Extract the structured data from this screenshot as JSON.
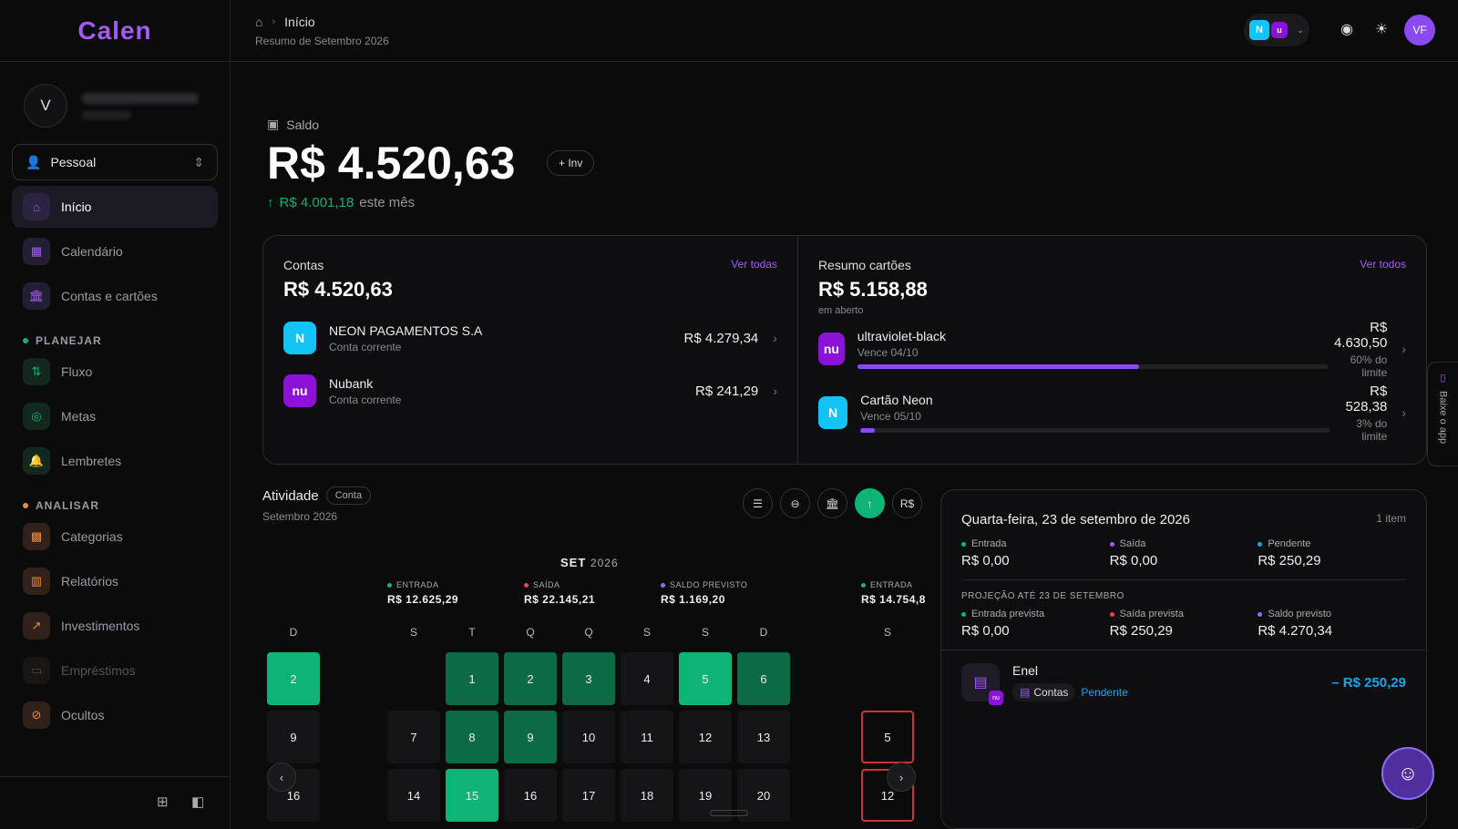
{
  "app": {
    "logo": "Calen"
  },
  "user": {
    "initial": "V"
  },
  "profile": {
    "label": "Pessoal"
  },
  "nav": {
    "main": [
      {
        "label": "Início",
        "icon": "home-icon",
        "active": true
      },
      {
        "label": "Calendário",
        "icon": "calendar-icon"
      },
      {
        "label": "Contas e cartões",
        "icon": "bank-icon"
      }
    ],
    "plan_title": "PLANEJAR",
    "plan": [
      {
        "label": "Fluxo",
        "icon": "arrows-icon"
      },
      {
        "label": "Metas",
        "icon": "target-icon"
      },
      {
        "label": "Lembretes",
        "icon": "bell-icon"
      }
    ],
    "analyze_title": "ANALISAR",
    "analyze": [
      {
        "label": "Categorias",
        "icon": "grid-icon"
      },
      {
        "label": "Relatórios",
        "icon": "chart-icon"
      },
      {
        "label": "Investimentos",
        "icon": "trend-icon"
      },
      {
        "label": "Empréstimos",
        "icon": "money-icon"
      },
      {
        "label": "Ocultos",
        "icon": "eye-off-icon"
      }
    ]
  },
  "topbar": {
    "crumb": "Início",
    "subtitle": "Resumo de Setembro 2026",
    "avatar": "VF"
  },
  "balance": {
    "label": "Saldo",
    "value": "R$ 4.520,63",
    "inv": "+ Inv",
    "growth": "R$ 4.001,18",
    "growth_suffix": "este mês"
  },
  "accounts": {
    "title": "Contas",
    "total": "R$ 4.520,63",
    "more": "Ver todas",
    "items": [
      {
        "name": "NEON PAGAMENTOS S.A",
        "type": "Conta corrente",
        "amount": "R$ 4.279,34",
        "logo": "N"
      },
      {
        "name": "Nubank",
        "type": "Conta corrente",
        "amount": "R$ 241,29",
        "logo": "nu"
      }
    ]
  },
  "cards": {
    "title": "Resumo cartões",
    "total": "R$ 5.158,88",
    "sub": "em aberto",
    "more": "Ver todos",
    "items": [
      {
        "name": "ultraviolet-black",
        "due": "Vence 04/10",
        "amount": "R$ 4.630,50",
        "limit": "60% do limite",
        "progress": 0.6,
        "logo": "nu"
      },
      {
        "name": "Cartão Neon",
        "due": "Vence 05/10",
        "amount": "R$ 528,38",
        "limit": "3% do limite",
        "progress": 0.03,
        "logo": "N"
      }
    ]
  },
  "activity": {
    "title": "Atividade",
    "tag": "Conta",
    "sub": "Setembro 2026",
    "currency": "R$"
  },
  "calendar": {
    "month": "SET",
    "year": "2026",
    "summary": [
      {
        "label": "ENTRADA",
        "value": "R$ 12.625,29",
        "color": "#0eb376"
      },
      {
        "label": "SAÍDA",
        "value": "R$ 22.145,21",
        "color": "#e54848"
      },
      {
        "label": "SALDO PREVISTO",
        "value": "R$ 1.169,20",
        "color": "#8b6ff5"
      },
      {
        "label": "ENTRADA",
        "value": "R$ 14.754,8",
        "color": "#0eb376"
      }
    ],
    "weekdays": [
      "D",
      "S",
      "T",
      "Q",
      "Q",
      "S",
      "S",
      "D",
      "S"
    ],
    "rows": [
      [
        "2",
        "",
        "1",
        "2",
        "3",
        "4",
        "5",
        "6",
        ""
      ],
      [
        "9",
        "7",
        "8",
        "9",
        "10",
        "11",
        "12",
        "13",
        "5"
      ],
      [
        "16",
        "14",
        "15",
        "16",
        "17",
        "18",
        "19",
        "20",
        "12"
      ]
    ]
  },
  "day": {
    "title": "Quarta-feira, 23 de setembro de 2026",
    "count": "1 item",
    "stats": [
      {
        "label": "Entrada",
        "value": "R$ 0,00",
        "color": "#0eb376"
      },
      {
        "label": "Saída",
        "value": "R$ 0,00",
        "color": "#a45bf5"
      },
      {
        "label": "Pendente",
        "value": "R$ 250,29",
        "color": "#1ea4e6"
      }
    ],
    "projection_title": "PROJEÇÃO ATÉ 23 DE SETEMBRO",
    "projection": [
      {
        "label": "Entrada prevista",
        "value": "R$ 0,00",
        "color": "#0eb376"
      },
      {
        "label": "Saída prevista",
        "value": "R$ 250,29",
        "color": "#e54848"
      },
      {
        "label": "Saldo previsto",
        "value": "R$ 4.270,34",
        "color": "#8b6ff5"
      }
    ],
    "tx": {
      "name": "Enel",
      "category": "Contas",
      "status": "Pendente",
      "amount": "– R$ 250,29",
      "badge": "nu"
    }
  },
  "app_banner": "Baixe o app"
}
